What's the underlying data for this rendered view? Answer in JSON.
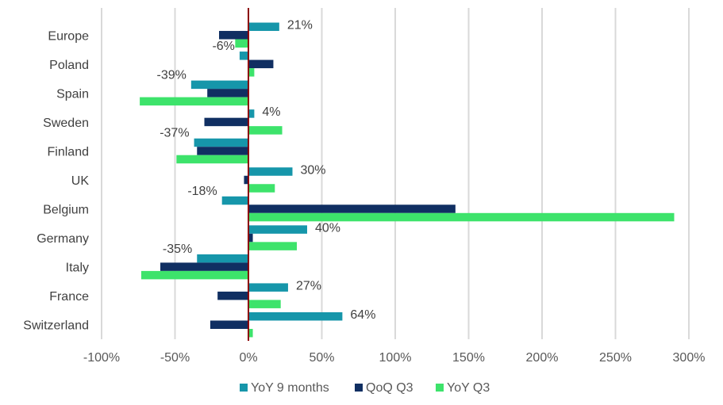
{
  "chart_data": {
    "type": "bar",
    "orientation": "horizontal",
    "categories": [
      "Europe",
      "Poland",
      "Spain",
      "Sweden",
      "Finland",
      "UK",
      "Belgium",
      "Germany",
      "Italy",
      "France",
      "Switzerland"
    ],
    "series": [
      {
        "name": "YoY 9 months",
        "color": "#1696aa",
        "values": [
          21,
          -6,
          -39,
          4,
          -37,
          30,
          -18,
          40,
          -35,
          27,
          64
        ]
      },
      {
        "name": "QoQ Q3",
        "color": "#102f62",
        "values": [
          -20,
          17,
          -28,
          -30,
          -35,
          -3,
          141,
          3,
          -60,
          -21,
          -26
        ]
      },
      {
        "name": "YoY Q3",
        "color": "#3de36b",
        "values": [
          -9,
          4,
          -74,
          23,
          -49,
          18,
          290,
          33,
          -73,
          22,
          3
        ]
      }
    ],
    "data_labels": [
      "21%",
      "-6%",
      "-39%",
      "4%",
      "-37%",
      "30%",
      "-18%",
      "40%",
      "-35%",
      "27%",
      "64%"
    ],
    "x_ticks": [
      "-100%",
      "-50%",
      "0%",
      "50%",
      "100%",
      "150%",
      "200%",
      "250%",
      "300%"
    ],
    "xlim": [
      -100,
      300
    ],
    "grid": true,
    "zero_line_color": "#8b0000",
    "legend_position": "bottom",
    "title": "",
    "xlabel": "",
    "ylabel": ""
  }
}
